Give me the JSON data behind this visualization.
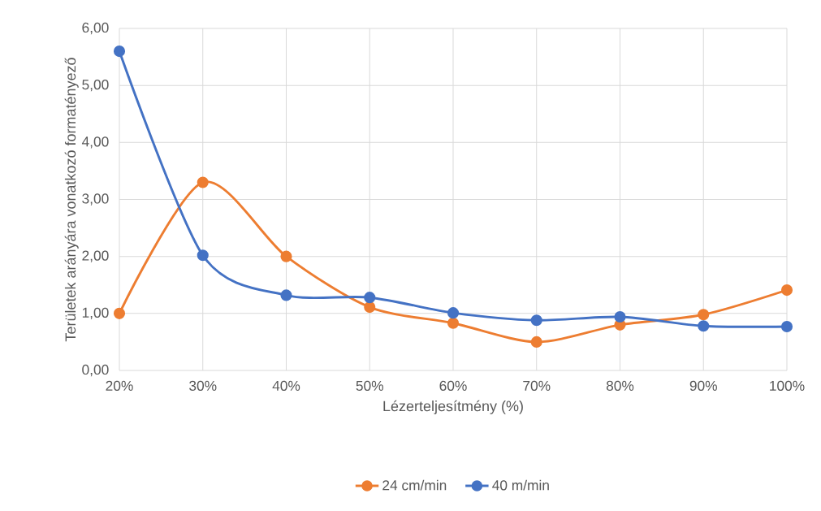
{
  "chart_data": {
    "type": "line",
    "xlabel": "Lézerteljesítmény (%)",
    "ylabel": "Területek arányára vonatkozó formatényező",
    "categories": [
      "20%",
      "30%",
      "40%",
      "50%",
      "60%",
      "70%",
      "80%",
      "90%",
      "100%"
    ],
    "series": [
      {
        "name": "24 cm/min",
        "color": "#ed7d31",
        "values": [
          1.0,
          3.3,
          2.0,
          1.11,
          0.83,
          0.5,
          0.8,
          0.98,
          1.41
        ]
      },
      {
        "name": "40 m/min",
        "color": "#4472c4",
        "values": [
          5.6,
          2.02,
          1.32,
          1.28,
          1.01,
          0.88,
          0.94,
          0.78,
          0.77
        ]
      }
    ],
    "ylim": [
      0,
      6
    ],
    "yticks": [
      {
        "value": 0,
        "label": "0,00"
      },
      {
        "value": 1,
        "label": "1,00"
      },
      {
        "value": 2,
        "label": "2,00"
      },
      {
        "value": 3,
        "label": "3,00"
      },
      {
        "value": 4,
        "label": "4,00"
      },
      {
        "value": 5,
        "label": "5,00"
      },
      {
        "value": 6,
        "label": "6,00"
      }
    ],
    "grid": true,
    "legend": "bottom",
    "marker": "circle",
    "line_style": "solid"
  }
}
